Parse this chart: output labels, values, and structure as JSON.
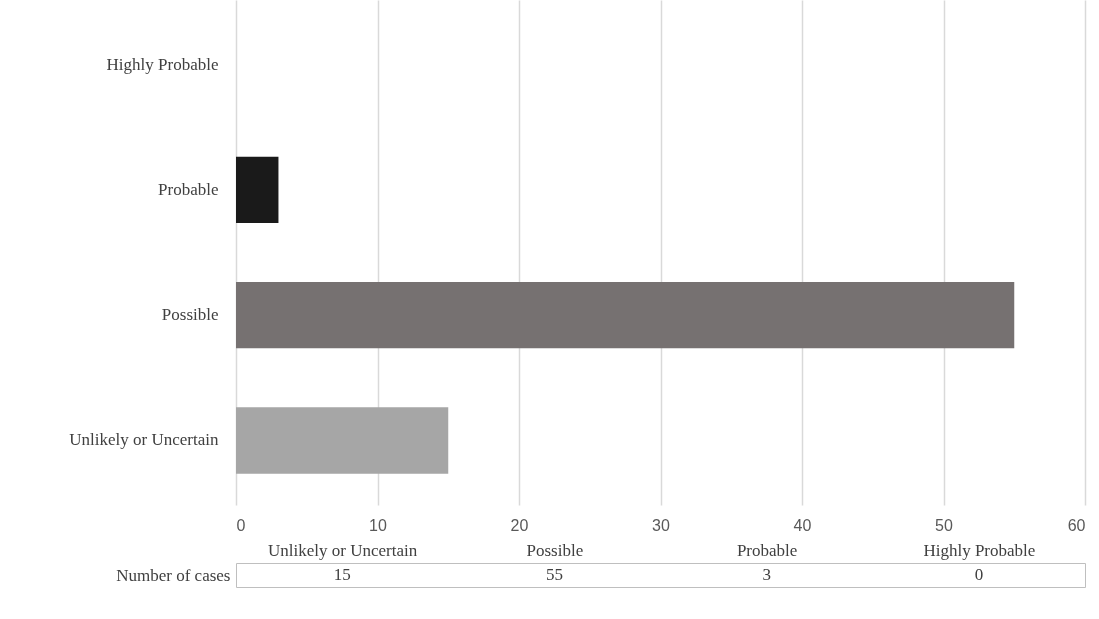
{
  "chart_data": [
    {
      "type": "bar",
      "orientation": "horizontal",
      "categories": [
        "Highly Probable",
        "Probable",
        "Possible",
        "Unlikely or Uncertain"
      ],
      "series": [
        {
          "values": [
            0,
            3,
            55,
            15
          ]
        }
      ],
      "colors": [
        "#4472c4",
        "#1a1a1a",
        "#767171",
        "#a6a6a6"
      ],
      "xlim": [
        0,
        60
      ],
      "xticks": [
        0,
        10,
        20,
        30,
        40,
        50,
        60
      ],
      "grid": "x",
      "legend": false
    },
    {
      "type": "other",
      "categories": [
        "Unlikely or Uncertain",
        "Possible",
        "Probable",
        "Highly Probable"
      ],
      "series": [
        {
          "name": "Number of cases",
          "values": [
            15,
            55,
            3,
            0
          ]
        }
      ],
      "data_labels": true
    }
  ]
}
